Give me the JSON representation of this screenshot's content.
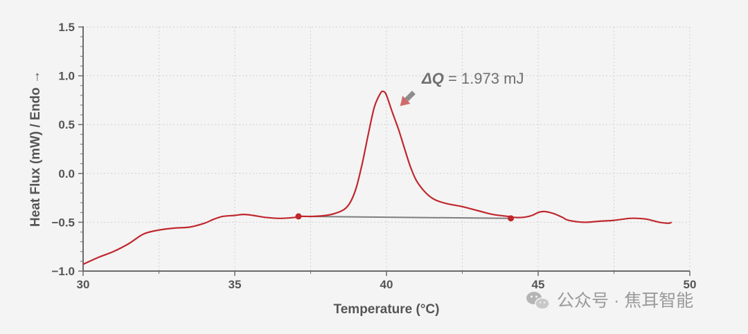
{
  "chart_data": {
    "type": "line",
    "xlabel": "Temperature (°C)",
    "ylabel": "Heat Flux (mW) / Endo →",
    "xlim": [
      30,
      50
    ],
    "ylim": [
      -1.0,
      1.5
    ],
    "xticks": [
      30,
      35,
      40,
      45,
      50
    ],
    "xtick_labels": [
      "30",
      "35",
      "40",
      "45",
      "50"
    ],
    "yticks": [
      -1.0,
      -0.5,
      0.0,
      0.5,
      1.0,
      1.5
    ],
    "ytick_labels": [
      "−1.0",
      "−0.5",
      "0.0",
      "0.5",
      "1.0",
      "1.5"
    ],
    "grid": true,
    "series": [
      {
        "color": "#c0272d",
        "x": [
          30.0,
          30.5,
          31.0,
          31.5,
          32.0,
          32.5,
          33.0,
          33.5,
          34.0,
          34.3,
          34.6,
          35.0,
          35.3,
          35.6,
          36.0,
          36.5,
          37.0,
          37.2,
          37.6,
          38.0,
          38.3,
          38.6,
          38.8,
          39.0,
          39.2,
          39.4,
          39.6,
          39.8,
          39.9,
          40.0,
          40.2,
          40.4,
          40.6,
          40.8,
          41.0,
          41.3,
          41.6,
          42.0,
          42.5,
          43.0,
          43.5,
          44.0,
          44.2,
          44.5,
          44.8,
          45.0,
          45.2,
          45.5,
          45.8,
          46.0,
          46.5,
          47.0,
          47.5,
          48.0,
          48.3,
          48.6,
          49.0,
          49.3,
          49.4
        ],
        "y": [
          -0.93,
          -0.86,
          -0.8,
          -0.72,
          -0.62,
          -0.58,
          -0.56,
          -0.55,
          -0.51,
          -0.47,
          -0.44,
          -0.43,
          -0.42,
          -0.43,
          -0.45,
          -0.46,
          -0.45,
          -0.44,
          -0.44,
          -0.43,
          -0.41,
          -0.37,
          -0.3,
          -0.15,
          0.1,
          0.4,
          0.68,
          0.82,
          0.84,
          0.8,
          0.62,
          0.45,
          0.25,
          0.06,
          -0.08,
          -0.2,
          -0.27,
          -0.31,
          -0.34,
          -0.38,
          -0.42,
          -0.44,
          -0.45,
          -0.45,
          -0.43,
          -0.4,
          -0.39,
          -0.41,
          -0.45,
          -0.48,
          -0.5,
          -0.49,
          -0.48,
          -0.46,
          -0.46,
          -0.47,
          -0.5,
          -0.51,
          -0.5
        ]
      }
    ],
    "baseline": {
      "color": "#7d7d7d",
      "x": [
        37.1,
        44.1
      ],
      "y": [
        -0.44,
        -0.46
      ]
    },
    "baseline_points": {
      "color": "#c0272d",
      "x": [
        37.1,
        44.1
      ],
      "y": [
        -0.44,
        -0.46
      ]
    },
    "annotation": {
      "symbol": "ΔQ",
      "text": " = 1.973 mJ",
      "arrow_color": "#d06a6a",
      "arrow_tip": {
        "x": 40.45,
        "y": 0.69
      },
      "arrow_tail": {
        "x": 40.9,
        "y": 0.83
      }
    }
  },
  "watermark": {
    "icon": "wechat-icon",
    "text": "公众号 · 焦耳智能"
  }
}
